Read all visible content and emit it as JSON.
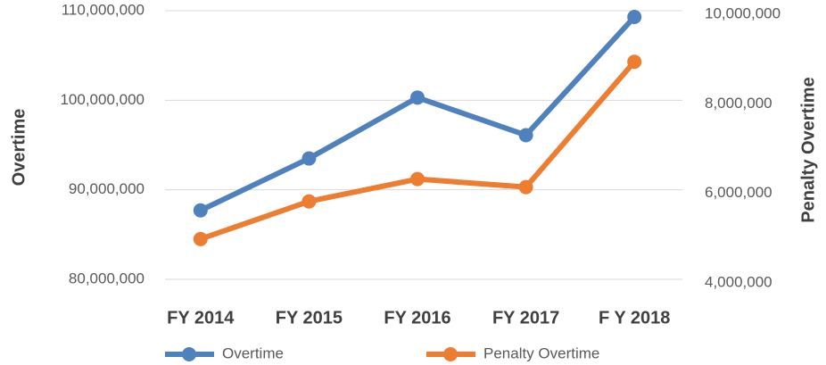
{
  "chart_data": {
    "type": "line",
    "categories": [
      "FY 2014",
      "FY 2015",
      "FY 2016",
      "FY 2017",
      "F Y 2018"
    ],
    "ylabel": "Overtime",
    "y2label": "Penalty Overtime",
    "ylim": [
      80000000,
      110000000
    ],
    "yticks": [
      {
        "value": 80000000,
        "label": "80,000,000"
      },
      {
        "value": 90000000,
        "label": "90,000,000"
      },
      {
        "value": 100000000,
        "label": "100,000,000"
      },
      {
        "value": 110000000,
        "label": "110,000,000"
      }
    ],
    "y2lim": [
      4000000,
      10000000
    ],
    "y2ticks": [
      {
        "value": 4000000,
        "label": "4,000,000"
      },
      {
        "value": 6000000,
        "label": "6,000,000"
      },
      {
        "value": 8000000,
        "label": "8,000,000"
      },
      {
        "value": 10000000,
        "label": "10,000,000"
      }
    ],
    "grid": true,
    "series": [
      {
        "name": "Overtime",
        "color": "#4f81bd",
        "values": [
          87700000,
          93500000,
          100300000,
          96100000,
          109300000
        ]
      },
      {
        "name": "Penalty Overtime",
        "color": "#ed7d31",
        "axis": "y2",
        "values": [
          4900000,
          5740000,
          6240000,
          6060000,
          8860000
        ]
      }
    ]
  }
}
